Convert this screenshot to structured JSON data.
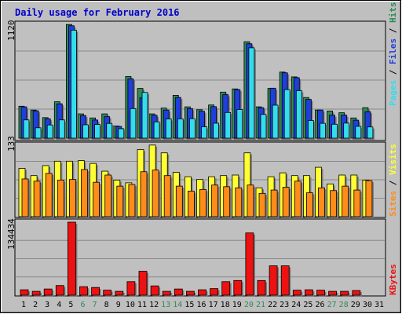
{
  "colors": {
    "background": "#bfbfbf",
    "hits": "#2e8b57",
    "files": "#1f3fdc",
    "pages": "#33ddee",
    "visits": "#ffff33",
    "sites": "#ff8c1a",
    "kbytes": "#ee1111",
    "title": "#0000cc",
    "weekend_day": "#2e8b57"
  },
  "chart_data": [
    {
      "type": "bar",
      "title": "Daily usage for February 2016",
      "categories": [
        "1",
        "2",
        "3",
        "4",
        "5",
        "6",
        "7",
        "8",
        "9",
        "10",
        "11",
        "12",
        "13",
        "14",
        "15",
        "16",
        "17",
        "18",
        "19",
        "20",
        "21",
        "22",
        "23",
        "24",
        "25",
        "26",
        "27",
        "28",
        "29",
        "30",
        "31"
      ],
      "weekend_days": [
        "6",
        "7",
        "13",
        "14",
        "20",
        "21",
        "27",
        "28"
      ],
      "y_tick_label": "1120",
      "ylim": [
        0,
        1120
      ],
      "legend": [
        "Pages",
        "Files",
        "Hits"
      ],
      "series": [
        {
          "name": "Hits",
          "values": [
            308,
            271,
            198,
            351,
            1096,
            234,
            195,
            234,
            117,
            595,
            480,
            234,
            290,
            413,
            302,
            274,
            320,
            444,
            475,
            930,
            302,
            480,
            637,
            591,
            392,
            271,
            262,
            245,
            195,
            294,
            0
          ]
        },
        {
          "name": "Files",
          "values": [
            302,
            264,
            187,
            331,
            1084,
            218,
            175,
            207,
            113,
            571,
            388,
            221,
            271,
            392,
            285,
            260,
            304,
            419,
            468,
            910,
            294,
            482,
            630,
            583,
            374,
            271,
            221,
            221,
            173,
            255,
            0
          ]
        },
        {
          "name": "Pages",
          "values": [
            176,
            100,
            127,
            176,
            1041,
            129,
            132,
            142,
            91,
            285,
            441,
            157,
            185,
            186,
            188,
            110,
            144,
            247,
            276,
            871,
            229,
            318,
            468,
            458,
            170,
            143,
            134,
            145,
            114,
            108,
            0
          ]
        }
      ]
    },
    {
      "type": "bar",
      "categories": [
        "1",
        "2",
        "3",
        "4",
        "5",
        "6",
        "7",
        "8",
        "9",
        "10",
        "11",
        "12",
        "13",
        "14",
        "15",
        "16",
        "17",
        "18",
        "19",
        "20",
        "21",
        "22",
        "23",
        "24",
        "25",
        "26",
        "27",
        "28",
        "29",
        "30",
        "31"
      ],
      "y_tick_label": "133",
      "ylim": [
        0,
        133
      ],
      "legend": [
        "Sites",
        "Visits"
      ],
      "series": [
        {
          "name": "Visits",
          "values": [
            87,
            74,
            92,
            100,
            100,
            101,
            96,
            82,
            66,
            61,
            121,
            129,
            115,
            80,
            72,
            67,
            72,
            74,
            75,
            115,
            52,
            72,
            79,
            74,
            74,
            89,
            59,
            75,
            75,
            66,
            0
          ]
        },
        {
          "name": "Sites",
          "values": [
            68,
            64,
            78,
            66,
            67,
            85,
            62,
            75,
            55,
            58,
            81,
            84,
            74,
            55,
            46,
            49,
            57,
            54,
            52,
            57,
            42,
            48,
            53,
            64,
            43,
            52,
            47,
            55,
            48,
            65,
            0
          ]
        }
      ]
    },
    {
      "type": "bar",
      "categories": [
        "1",
        "2",
        "3",
        "4",
        "5",
        "6",
        "7",
        "8",
        "9",
        "10",
        "11",
        "12",
        "13",
        "14",
        "15",
        "16",
        "17",
        "18",
        "19",
        "20",
        "21",
        "22",
        "23",
        "24",
        "25",
        "26",
        "27",
        "28",
        "29",
        "30",
        "31"
      ],
      "y_tick_label": "134434",
      "ylim": [
        0,
        134434
      ],
      "legend": [
        "KBytes"
      ],
      "series": [
        {
          "name": "KBytes",
          "values": [
            9960,
            7100,
            11380,
            17780,
            134434,
            15620,
            14220,
            9240,
            7100,
            24890,
            44090,
            17070,
            7100,
            11380,
            7100,
            9960,
            12090,
            24890,
            27020,
            114600,
            27020,
            54040,
            54040,
            9240,
            9960,
            9240,
            7100,
            7100,
            8530,
            0,
            0
          ]
        }
      ]
    }
  ]
}
